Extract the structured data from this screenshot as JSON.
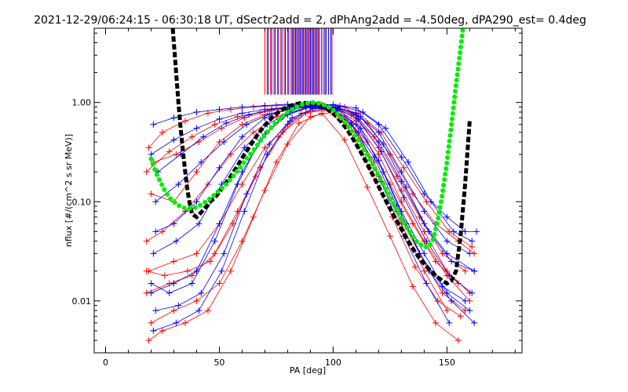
{
  "chart_data": {
    "type": "scatter",
    "title": "2021-12-29/06:24:15 - 06:30:18 UT, dSectr2add = 2, dPhAng2add = -4.50deg, dPA290_est=   0.4deg",
    "xlabel": "PA [deg]",
    "ylabel": "nflux [#/(cm^2 s sr MeV)]",
    "xlim": [
      -5,
      183
    ],
    "ylim": [
      0.003,
      5.6
    ],
    "yscale": "log",
    "x_ticks": [
      {
        "value": 0,
        "label": "0"
      },
      {
        "value": 50,
        "label": "50"
      },
      {
        "value": 100,
        "label": "100"
      },
      {
        "value": 150,
        "label": "150"
      }
    ],
    "y_ticks": [
      {
        "value": 0.01,
        "label": "0.01"
      },
      {
        "value": 0.1,
        "label": "0.10"
      },
      {
        "value": 1.0,
        "label": "1.00"
      }
    ],
    "grid": false,
    "series": [
      {
        "color": "#ff0000",
        "marker": "+",
        "lines": [
          {
            "x": [
              19,
              25,
              35,
              45,
              55,
              65,
              75,
              85,
              95,
              105,
              115,
              125,
              135,
              145,
              155,
              162
            ],
            "y": [
              0.35,
              0.5,
              0.65,
              0.78,
              0.85,
              0.9,
              0.93,
              0.95,
              0.96,
              0.9,
              0.62,
              0.3,
              0.12,
              0.06,
              0.04,
              0.03
            ]
          },
          {
            "x": [
              18,
              28,
              38,
              48,
              58,
              68,
              78,
              88,
              98,
              108,
              118,
              128,
              138,
              148,
              158
            ],
            "y": [
              0.2,
              0.32,
              0.45,
              0.6,
              0.72,
              0.8,
              0.86,
              0.9,
              0.88,
              0.75,
              0.45,
              0.18,
              0.07,
              0.03,
              0.02
            ]
          },
          {
            "x": [
              20,
              30,
              40,
              50,
              60,
              70,
              80,
              90,
              100,
              110,
              120,
              130,
              140,
              150,
              160
            ],
            "y": [
              0.12,
              0.1,
              0.2,
              0.4,
              0.6,
              0.75,
              0.85,
              0.92,
              0.9,
              0.7,
              0.35,
              0.13,
              0.05,
              0.02,
              0.012
            ]
          },
          {
            "x": [
              18,
              25,
              35,
              45,
              55,
              65,
              75,
              85,
              95,
              105,
              115,
              125,
              135,
              145,
              155
            ],
            "y": [
              0.04,
              0.05,
              0.08,
              0.15,
              0.3,
              0.5,
              0.72,
              0.88,
              0.9,
              0.72,
              0.4,
              0.15,
              0.06,
              0.025,
              0.015
            ]
          },
          {
            "x": [
              19,
              30,
              40,
              50,
              60,
              70,
              80,
              90,
              100,
              110,
              120,
              130,
              140,
              150,
              160
            ],
            "y": [
              0.02,
              0.025,
              0.03,
              0.06,
              0.15,
              0.35,
              0.6,
              0.82,
              0.88,
              0.65,
              0.3,
              0.1,
              0.04,
              0.018,
              0.01
            ]
          },
          {
            "x": [
              18,
              28,
              38,
              48,
              58,
              68,
              78,
              88,
              98,
              108,
              118,
              128,
              138,
              148,
              158
            ],
            "y": [
              0.012,
              0.015,
              0.018,
              0.03,
              0.08,
              0.22,
              0.5,
              0.78,
              0.85,
              0.6,
              0.25,
              0.08,
              0.03,
              0.012,
              0.008
            ]
          },
          {
            "x": [
              20,
              30,
              40,
              50,
              60,
              70,
              80,
              90,
              100,
              110,
              120,
              130,
              140,
              150
            ],
            "y": [
              0.006,
              0.008,
              0.01,
              0.015,
              0.04,
              0.13,
              0.38,
              0.72,
              0.8,
              0.5,
              0.18,
              0.06,
              0.02,
              0.008
            ]
          },
          {
            "x": [
              19,
              25,
              35,
              45,
              55,
              65,
              75,
              85,
              95,
              105,
              115,
              125,
              135,
              145,
              155
            ],
            "y": [
              0.004,
              0.005,
              0.006,
              0.008,
              0.02,
              0.07,
              0.25,
              0.62,
              0.78,
              0.42,
              0.14,
              0.045,
              0.014,
              0.006,
              0.004
            ]
          },
          {
            "x": [
              21,
              31,
              41,
              51,
              61,
              71,
              81,
              91,
              101,
              111,
              121,
              131,
              141,
              151,
              161
            ],
            "y": [
              0.25,
              0.3,
              0.4,
              0.55,
              0.7,
              0.82,
              0.9,
              0.94,
              0.9,
              0.78,
              0.5,
              0.22,
              0.1,
              0.05,
              0.035
            ]
          },
          {
            "x": [
              18,
              26,
              36,
              46,
              56,
              66,
              76,
              86,
              96,
              106,
              116,
              126,
              136,
              146,
              156
            ],
            "y": [
              0.02,
              0.018,
              0.02,
              0.025,
              0.06,
              0.18,
              0.45,
              0.78,
              0.86,
              0.58,
              0.22,
              0.07,
              0.022,
              0.01,
              0.007
            ]
          }
        ]
      },
      {
        "color": "#0000ff",
        "marker": "+",
        "lines": [
          {
            "x": [
              21,
              30,
              40,
              50,
              60,
              70,
              80,
              90,
              100,
              110,
              120,
              130,
              140,
              150,
              158,
              163
            ],
            "y": [
              0.6,
              0.7,
              0.8,
              0.85,
              0.9,
              0.93,
              0.96,
              0.97,
              0.95,
              0.88,
              0.6,
              0.28,
              0.12,
              0.07,
              0.05,
              0.05
            ]
          },
          {
            "x": [
              20,
              30,
              40,
              50,
              60,
              70,
              80,
              90,
              100,
              110,
              120,
              130,
              140,
              150,
              160
            ],
            "y": [
              0.3,
              0.42,
              0.55,
              0.68,
              0.78,
              0.85,
              0.9,
              0.93,
              0.9,
              0.78,
              0.5,
              0.2,
              0.08,
              0.04,
              0.03
            ]
          },
          {
            "x": [
              22,
              32,
              42,
              52,
              62,
              72,
              82,
              92,
              102,
              112,
              122,
              132,
              142,
              152,
              162
            ],
            "y": [
              0.1,
              0.15,
              0.25,
              0.4,
              0.6,
              0.76,
              0.87,
              0.92,
              0.9,
              0.72,
              0.38,
              0.14,
              0.05,
              0.025,
              0.02
            ]
          },
          {
            "x": [
              21,
              31,
              41,
              51,
              61,
              71,
              81,
              91,
              101,
              111,
              121,
              131,
              141,
              151,
              161
            ],
            "y": [
              0.03,
              0.04,
              0.06,
              0.15,
              0.35,
              0.6,
              0.8,
              0.9,
              0.88,
              0.68,
              0.32,
              0.11,
              0.04,
              0.018,
              0.012
            ]
          },
          {
            "x": [
              20,
              30,
              40,
              50,
              60,
              70,
              80,
              90,
              100,
              110,
              120,
              130,
              140,
              150,
              160
            ],
            "y": [
              0.012,
              0.015,
              0.02,
              0.06,
              0.2,
              0.48,
              0.75,
              0.9,
              0.86,
              0.6,
              0.26,
              0.08,
              0.03,
              0.012,
              0.008
            ]
          },
          {
            "x": [
              22,
              32,
              42,
              52,
              62,
              72,
              82,
              92,
              102,
              112,
              122,
              132,
              142,
              152,
              162
            ],
            "y": [
              0.008,
              0.009,
              0.012,
              0.03,
              0.12,
              0.38,
              0.7,
              0.88,
              0.85,
              0.55,
              0.2,
              0.06,
              0.02,
              0.01,
              0.006
            ]
          },
          {
            "x": [
              21,
              31,
              41,
              51,
              61,
              71,
              81,
              91,
              101,
              111,
              121,
              131,
              141,
              151
            ],
            "y": [
              0.005,
              0.006,
              0.008,
              0.02,
              0.08,
              0.3,
              0.65,
              0.87,
              0.84,
              0.5,
              0.16,
              0.045,
              0.015,
              0.006
            ]
          },
          {
            "x": [
              23,
              33,
              43,
              53,
              63,
              73,
              83,
              93,
              103,
              113,
              123,
              133,
              143,
              153,
              161
            ],
            "y": [
              0.2,
              0.3,
              0.45,
              0.62,
              0.75,
              0.85,
              0.92,
              0.95,
              0.92,
              0.8,
              0.55,
              0.25,
              0.1,
              0.05,
              0.04
            ]
          },
          {
            "x": [
              20,
              28,
              38,
              48,
              58,
              68,
              78,
              88,
              98,
              108,
              118,
              128,
              138,
              148,
              158
            ],
            "y": [
              0.015,
              0.012,
              0.015,
              0.04,
              0.15,
              0.42,
              0.72,
              0.89,
              0.87,
              0.62,
              0.28,
              0.09,
              0.03,
              0.014,
              0.01
            ]
          },
          {
            "x": [
              22,
              30,
              40,
              50,
              60,
              70,
              80,
              90,
              100,
              110,
              120,
              130,
              140,
              150,
              162
            ],
            "y": [
              0.05,
              0.06,
              0.1,
              0.22,
              0.45,
              0.7,
              0.86,
              0.93,
              0.9,
              0.74,
              0.4,
              0.16,
              0.06,
              0.03,
              0.02
            ]
          }
        ]
      },
      {
        "color": "#000000",
        "marker": "dashed",
        "x": [
          29,
          30,
          31,
          32,
          33,
          34,
          35,
          36,
          37,
          38,
          40,
          42,
          44,
          46,
          48,
          50,
          52,
          55,
          58,
          61,
          64,
          67,
          70,
          73,
          76,
          79,
          82,
          85,
          88,
          91,
          94,
          97,
          100,
          103,
          106,
          109,
          112,
          115,
          118,
          121,
          124,
          127,
          130,
          133,
          136,
          139,
          142,
          145,
          148,
          150,
          152,
          154,
          156,
          158,
          160
        ],
        "y": [
          8.0,
          4.0,
          2.0,
          1.0,
          0.55,
          0.32,
          0.2,
          0.13,
          0.095,
          0.075,
          0.07,
          0.078,
          0.088,
          0.1,
          0.11,
          0.125,
          0.145,
          0.18,
          0.23,
          0.3,
          0.38,
          0.48,
          0.59,
          0.7,
          0.8,
          0.88,
          0.94,
          0.98,
          0.99,
          0.98,
          0.94,
          0.87,
          0.78,
          0.66,
          0.54,
          0.42,
          0.32,
          0.24,
          0.175,
          0.128,
          0.094,
          0.07,
          0.053,
          0.04,
          0.031,
          0.025,
          0.021,
          0.018,
          0.016,
          0.015,
          0.016,
          0.02,
          0.045,
          0.15,
          0.65
        ]
      },
      {
        "color": "#00ee00",
        "marker": "dots",
        "x": [
          20,
          22,
          24,
          26,
          28,
          30,
          32,
          34,
          36,
          38,
          40,
          42,
          44,
          46,
          48,
          50,
          53,
          56,
          59,
          62,
          65,
          68,
          71,
          74,
          77,
          80,
          83,
          86,
          89,
          92,
          95,
          98,
          101,
          104,
          107,
          110,
          113,
          116,
          119,
          122,
          125,
          128,
          131,
          134,
          137,
          140,
          142,
          144,
          146,
          148,
          150,
          152,
          154,
          156,
          157
        ],
        "y": [
          0.27,
          0.2,
          0.16,
          0.13,
          0.11,
          0.1,
          0.092,
          0.087,
          0.085,
          0.086,
          0.088,
          0.093,
          0.1,
          0.108,
          0.118,
          0.13,
          0.15,
          0.18,
          0.22,
          0.27,
          0.33,
          0.41,
          0.5,
          0.6,
          0.7,
          0.8,
          0.88,
          0.95,
          0.99,
          1.0,
          0.97,
          0.9,
          0.8,
          0.68,
          0.56,
          0.45,
          0.35,
          0.27,
          0.2,
          0.15,
          0.11,
          0.082,
          0.062,
          0.048,
          0.039,
          0.035,
          0.035,
          0.042,
          0.065,
          0.12,
          0.25,
          0.6,
          1.5,
          3.5,
          5.5
        ]
      }
    ],
    "annotations": [
      {
        "type": "vlines",
        "color": "#ff0000",
        "y_from": 1.2,
        "y_to": 5.6,
        "x": [
          70,
          71,
          72.5,
          74,
          75.5,
          77,
          78.5,
          80,
          81.5,
          83,
          84.5,
          86,
          87.5,
          89,
          90.5,
          92,
          93.5,
          95,
          96.5,
          98,
          99.5
        ]
      },
      {
        "type": "vlines",
        "color": "#0000ff",
        "y_from": 1.2,
        "y_to": 5.6,
        "x": [
          71.5,
          73,
          74.5,
          76,
          77.5,
          79,
          80.5,
          82,
          82.5,
          83.5,
          84,
          85,
          85.5,
          86.5,
          87,
          88,
          88.5,
          89.5,
          90,
          91,
          91.5,
          92.5,
          93,
          94,
          95,
          96,
          97,
          98,
          99
        ]
      }
    ]
  }
}
